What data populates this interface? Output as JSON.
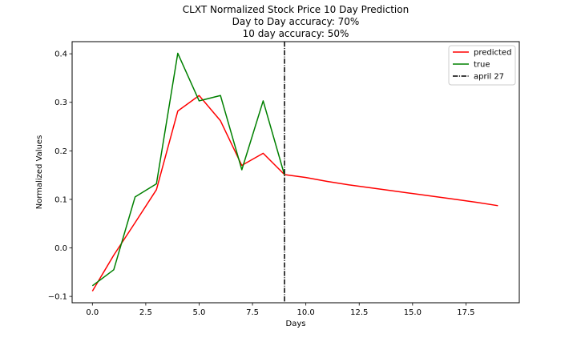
{
  "chart_data": {
    "type": "line",
    "title_lines": [
      "CLXT Normalized Stock Price 10 Day Prediction",
      "Day to Day accuracy: 70%",
      "10 day accuracy: 50%"
    ],
    "xlabel": "Days",
    "ylabel": "Normalized Values",
    "xlim": [
      -0.95,
      20.0
    ],
    "ylim": [
      -0.113,
      0.425
    ],
    "xticks": [
      {
        "value": 0.0,
        "label": "0.0"
      },
      {
        "value": 2.5,
        "label": "2.5"
      },
      {
        "value": 5.0,
        "label": "5.0"
      },
      {
        "value": 7.5,
        "label": "7.5"
      },
      {
        "value": 10.0,
        "label": "10.0"
      },
      {
        "value": 12.5,
        "label": "12.5"
      },
      {
        "value": 15.0,
        "label": "15.0"
      },
      {
        "value": 17.5,
        "label": "17.5"
      }
    ],
    "yticks": [
      {
        "value": -0.1,
        "label": "−0.1"
      },
      {
        "value": 0.0,
        "label": "0.0"
      },
      {
        "value": 0.1,
        "label": "0.1"
      },
      {
        "value": 0.2,
        "label": "0.2"
      },
      {
        "value": 0.3,
        "label": "0.3"
      },
      {
        "value": 0.4,
        "label": "0.4"
      }
    ],
    "grid": false,
    "legend_position": "top-right",
    "series": [
      {
        "name": "predicted",
        "color": "#ff0000",
        "style": "solid",
        "x": [
          0,
          1,
          2,
          3,
          4,
          5,
          6,
          7,
          8,
          9,
          10,
          11,
          12,
          13,
          14,
          15,
          16,
          17,
          18,
          19
        ],
        "y": [
          -0.089,
          -0.015,
          0.052,
          0.12,
          0.282,
          0.314,
          0.262,
          0.17,
          0.195,
          0.151,
          0.145,
          0.137,
          0.13,
          0.124,
          0.118,
          0.112,
          0.106,
          0.1,
          0.094,
          0.087
        ]
      },
      {
        "name": "true",
        "color": "#008000",
        "style": "solid",
        "x": [
          0,
          1,
          2,
          3,
          4,
          5,
          6,
          7,
          8,
          9
        ],
        "y": [
          -0.078,
          -0.045,
          0.105,
          0.132,
          0.401,
          0.303,
          0.314,
          0.161,
          0.303,
          0.15
        ]
      }
    ],
    "vlines": [
      {
        "name": "april 27",
        "x": 9,
        "color": "#000000",
        "style": "dashdot"
      }
    ]
  }
}
